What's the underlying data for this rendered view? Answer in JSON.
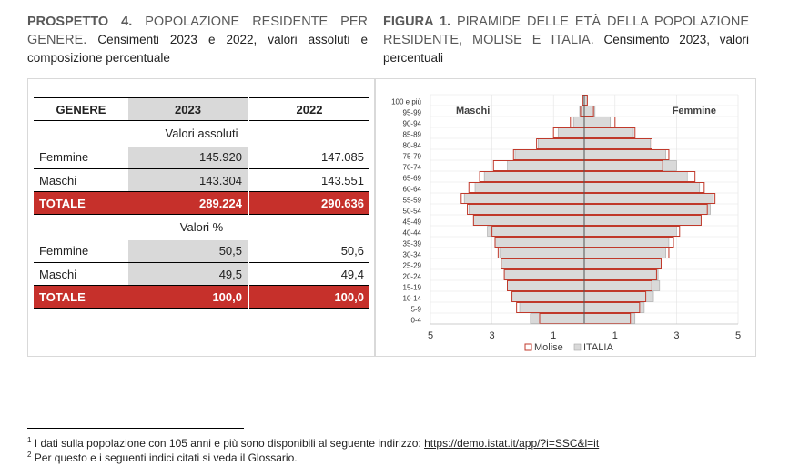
{
  "left_caption": {
    "label": "PROSPETTO 4.",
    "title": " POPOLAZIONE RESIDENTE PER GENERE.",
    "subtitle": " Censimenti 2023 e 2022, valori assoluti e composizione percentuale"
  },
  "right_caption": {
    "label": "FIGURA 1.",
    "title": " PIRAMIDE DELLE ETÀ DELLA POPOLAZIONE RESIDENTE, MOLISE E ITALIA.",
    "subtitle": " Censimento 2023, valori percentuali"
  },
  "table": {
    "headers": [
      "GENERE",
      "2023",
      "2022"
    ],
    "section_abs": "Valori assoluti",
    "section_pct": "Valori %",
    "abs_rows": [
      {
        "label": "Femmine",
        "v2023": "145.920",
        "v2022": "147.085"
      },
      {
        "label": "Maschi",
        "v2023": "143.304",
        "v2022": "143.551"
      }
    ],
    "abs_total": {
      "label": "TOTALE",
      "v2023": "289.224",
      "v2022": "290.636"
    },
    "pct_rows": [
      {
        "label": "Femmine",
        "v2023": "50,5",
        "v2022": "50,6"
      },
      {
        "label": "Maschi",
        "v2023": "49,5",
        "v2022": "49,4"
      }
    ],
    "pct_total": {
      "label": "TOTALE",
      "v2023": "100,0",
      "v2022": "100,0"
    }
  },
  "chart_data": {
    "type": "bar",
    "orientation": "horizontal-pyramid",
    "categories": [
      "100 e più",
      "95-99",
      "90-94",
      "85-89",
      "80-84",
      "75-79",
      "70-74",
      "65-69",
      "60-64",
      "55-59",
      "50-54",
      "45-49",
      "40-44",
      "35-39",
      "30-34",
      "25-29",
      "20-24",
      "15-19",
      "10-14",
      "5-9",
      "0-4"
    ],
    "left_label": "Maschi",
    "right_label": "Femmine",
    "x_ticks": [
      "5",
      "3",
      "1",
      "1",
      "3",
      "5"
    ],
    "xlim": [
      -5,
      5
    ],
    "grid": true,
    "legend_position": "bottom",
    "series": [
      {
        "name": "Molise",
        "color": "#c0392b",
        "male": [
          0.05,
          0.12,
          0.45,
          1.0,
          1.55,
          2.3,
          2.95,
          3.4,
          3.75,
          4.0,
          3.8,
          3.6,
          3.0,
          2.9,
          2.8,
          2.7,
          2.6,
          2.5,
          2.35,
          2.2,
          1.45
        ],
        "female": [
          0.1,
          0.3,
          1.0,
          1.65,
          2.2,
          2.75,
          2.55,
          3.6,
          3.9,
          4.25,
          4.0,
          3.8,
          3.1,
          2.9,
          2.75,
          2.5,
          2.35,
          2.2,
          2.0,
          1.8,
          1.5
        ]
      },
      {
        "name": "ITALIA",
        "color": "#d9d9d9",
        "male": [
          0.05,
          0.15,
          0.35,
          0.85,
          1.5,
          2.25,
          2.5,
          3.25,
          3.55,
          3.9,
          3.75,
          3.6,
          3.15,
          2.9,
          2.75,
          2.7,
          2.6,
          2.5,
          2.35,
          2.1,
          1.75
        ],
        "female": [
          0.1,
          0.35,
          0.85,
          1.6,
          2.15,
          2.65,
          3.0,
          3.35,
          3.75,
          4.2,
          4.1,
          3.8,
          3.0,
          2.75,
          2.65,
          2.5,
          2.4,
          2.45,
          2.25,
          1.95,
          1.65
        ]
      }
    ]
  },
  "footnotes": [
    {
      "num": "1",
      "text": " I dati sulla popolazione con 105 anni e più sono disponibili al seguente indirizzo: ",
      "link": "https://demo.istat.it/app/?i=SSC&l=it"
    },
    {
      "num": "2",
      "text": " Per questo e i seguenti indici citati si veda il Glossario.",
      "link": ""
    }
  ]
}
